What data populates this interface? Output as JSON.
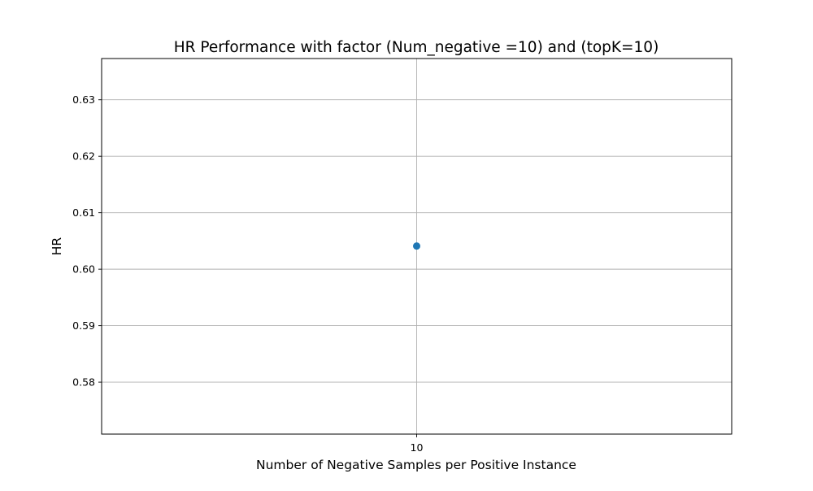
{
  "chart_data": {
    "type": "scatter",
    "title": "HR Performance with factor (Num_negative =10) and (topK=10)",
    "xlabel": "Number of Negative Samples per Positive Instance",
    "ylabel": "HR",
    "x_ticks": [
      "10"
    ],
    "y_ticks": [
      "0.58",
      "0.59",
      "0.60",
      "0.61",
      "0.62",
      "0.63"
    ],
    "ylim": [
      0.5708,
      0.6373
    ],
    "grid": true,
    "legend": "none",
    "series": [
      {
        "color": "#1f77b4",
        "points": [
          {
            "x": "10",
            "y": 0.6041
          }
        ]
      }
    ]
  }
}
